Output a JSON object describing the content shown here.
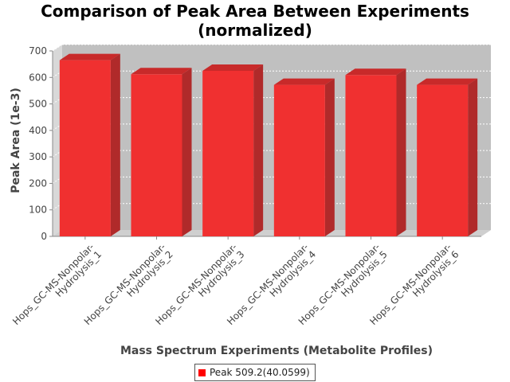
{
  "chart_data": {
    "type": "bar",
    "title_lines": [
      "Comparison of Peak Area Between Experiments",
      "(normalized)"
    ],
    "xlabel": "Mass Spectrum Experiments (Metabolite Profiles)",
    "ylabel": "Peak Area (1e-3)",
    "categories": [
      "Hops_GC-MS-Nonpolar-Hydrolysis_1",
      "Hops_GC-MS-Nonpolar-Hydrolysis_2",
      "Hops_GC-MS-Nonpolar-Hydrolysis_3",
      "Hops_GC-MS-Nonpolar-Hydrolysis_4",
      "Hops_GC-MS-Nonpolar-Hydrolysis_5",
      "Hops_GC-MS-Nonpolar-Hydrolysis_6"
    ],
    "category_label_lines": [
      [
        "Hops_GC-MS-Nonpolar-",
        "Hydrolysis_1"
      ],
      [
        "Hops_GC-MS-Nonpolar-",
        "Hydrolysis_2"
      ],
      [
        "Hops_GC-MS-Nonpolar-",
        "Hydrolysis_3"
      ],
      [
        "Hops_GC-MS-Nonpolar-",
        "Hydrolysis_4"
      ],
      [
        "Hops_GC-MS-Nonpolar-",
        "Hydrolysis_5"
      ],
      [
        "Hops_GC-MS-Nonpolar-",
        "Hydrolysis_6"
      ]
    ],
    "series": [
      {
        "name": "Peak 509.2(40.0599)",
        "values": [
          665,
          612,
          625,
          572,
          609,
          572
        ]
      }
    ],
    "ylim": [
      0,
      700
    ],
    "yticks": [
      0,
      100,
      200,
      300,
      400,
      500,
      600,
      700
    ],
    "grid": true,
    "legend_position": "bottom-center",
    "colors": {
      "bar_front": "#f03030",
      "bar_top": "#c82a2a",
      "bar_side": "#b02a2a",
      "plot_bg": "#c0c0c0",
      "plot_wall": "#d8d8d8",
      "legend_swatch": "#ff0000"
    }
  }
}
